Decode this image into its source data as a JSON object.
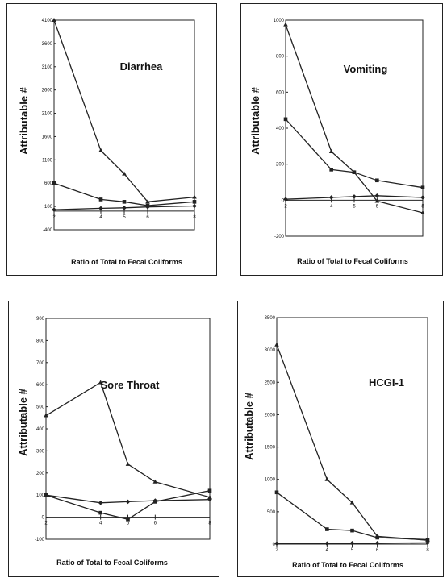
{
  "chart_data": [
    {
      "type": "line",
      "title": "Diarrhea",
      "xlabel": "Ratio of Total to Fecal Coliforms",
      "ylabel": "Attributable #",
      "x": [
        2,
        4,
        5,
        6,
        8
      ],
      "ylim": [
        -400,
        4100
      ],
      "yticks": [
        -400,
        100,
        600,
        1100,
        1600,
        2100,
        2600,
        3100,
        3600,
        4100
      ],
      "ytick_labels": [
        "-400",
        "100",
        "600",
        "1100",
        "1600",
        "2100",
        "2600",
        "3100",
        "3600",
        "4100"
      ],
      "xaxis_at": 0,
      "series": [
        {
          "marker": "triangle",
          "values": [
            4100,
            1300,
            800,
            200,
            300
          ]
        },
        {
          "marker": "square",
          "values": [
            600,
            250,
            200,
            120,
            200
          ]
        },
        {
          "marker": "diamond",
          "values": [
            30,
            60,
            70,
            90,
            110
          ]
        }
      ]
    },
    {
      "type": "line",
      "title": "Vomiting",
      "xlabel": "Ratio of Total to Fecal Coliforms",
      "ylabel": "Attributable #",
      "x": [
        2,
        4,
        5,
        6,
        8
      ],
      "ylim": [
        -200,
        1000
      ],
      "yticks": [
        -200,
        0,
        200,
        400,
        600,
        800,
        1000
      ],
      "ytick_labels": [
        "-200",
        "0",
        "200",
        "400",
        "600",
        "800",
        "1000"
      ],
      "xaxis_at": 0,
      "series": [
        {
          "marker": "triangle",
          "values": [
            975,
            270,
            155,
            -5,
            -70
          ]
        },
        {
          "marker": "square",
          "values": [
            450,
            170,
            155,
            110,
            70
          ]
        },
        {
          "marker": "diamond",
          "values": [
            5,
            15,
            20,
            25,
            15
          ]
        }
      ]
    },
    {
      "type": "line",
      "title": "Sore Throat",
      "xlabel": "Ratio of Total to Fecal Coliforms",
      "ylabel": "Attributable #",
      "x": [
        2,
        4,
        5,
        6,
        8
      ],
      "ylim": [
        -100,
        900
      ],
      "yticks": [
        -100,
        0,
        100,
        200,
        300,
        400,
        500,
        600,
        700,
        800,
        900
      ],
      "ytick_labels": [
        "-100",
        "0",
        "100",
        "200",
        "300",
        "400",
        "500",
        "600",
        "700",
        "800",
        "900"
      ],
      "xaxis_at": 0,
      "series": [
        {
          "marker": "triangle",
          "values": [
            460,
            610,
            240,
            160,
            90
          ]
        },
        {
          "marker": "square",
          "values": [
            100,
            20,
            -10,
            70,
            120
          ]
        },
        {
          "marker": "diamond",
          "values": [
            100,
            65,
            70,
            75,
            80
          ]
        }
      ]
    },
    {
      "type": "line",
      "title": "HCGI-1",
      "xlabel": "Ratio of Total to Fecal Coliforms",
      "ylabel": "Attributable #",
      "x": [
        2,
        4,
        5,
        6,
        8
      ],
      "ylim": [
        0,
        3500
      ],
      "yticks": [
        0,
        500,
        1000,
        1500,
        2000,
        2500,
        3000,
        3500
      ],
      "ytick_labels": [
        "0",
        "500",
        "1000",
        "1500",
        "2000",
        "2500",
        "3000",
        "3500"
      ],
      "xaxis_at": 0,
      "series": [
        {
          "marker": "triangle",
          "values": [
            3080,
            1000,
            640,
            120,
            60
          ]
        },
        {
          "marker": "square",
          "values": [
            800,
            230,
            210,
            100,
            70
          ]
        },
        {
          "marker": "diamond",
          "values": [
            10,
            10,
            15,
            15,
            20
          ]
        }
      ]
    }
  ]
}
